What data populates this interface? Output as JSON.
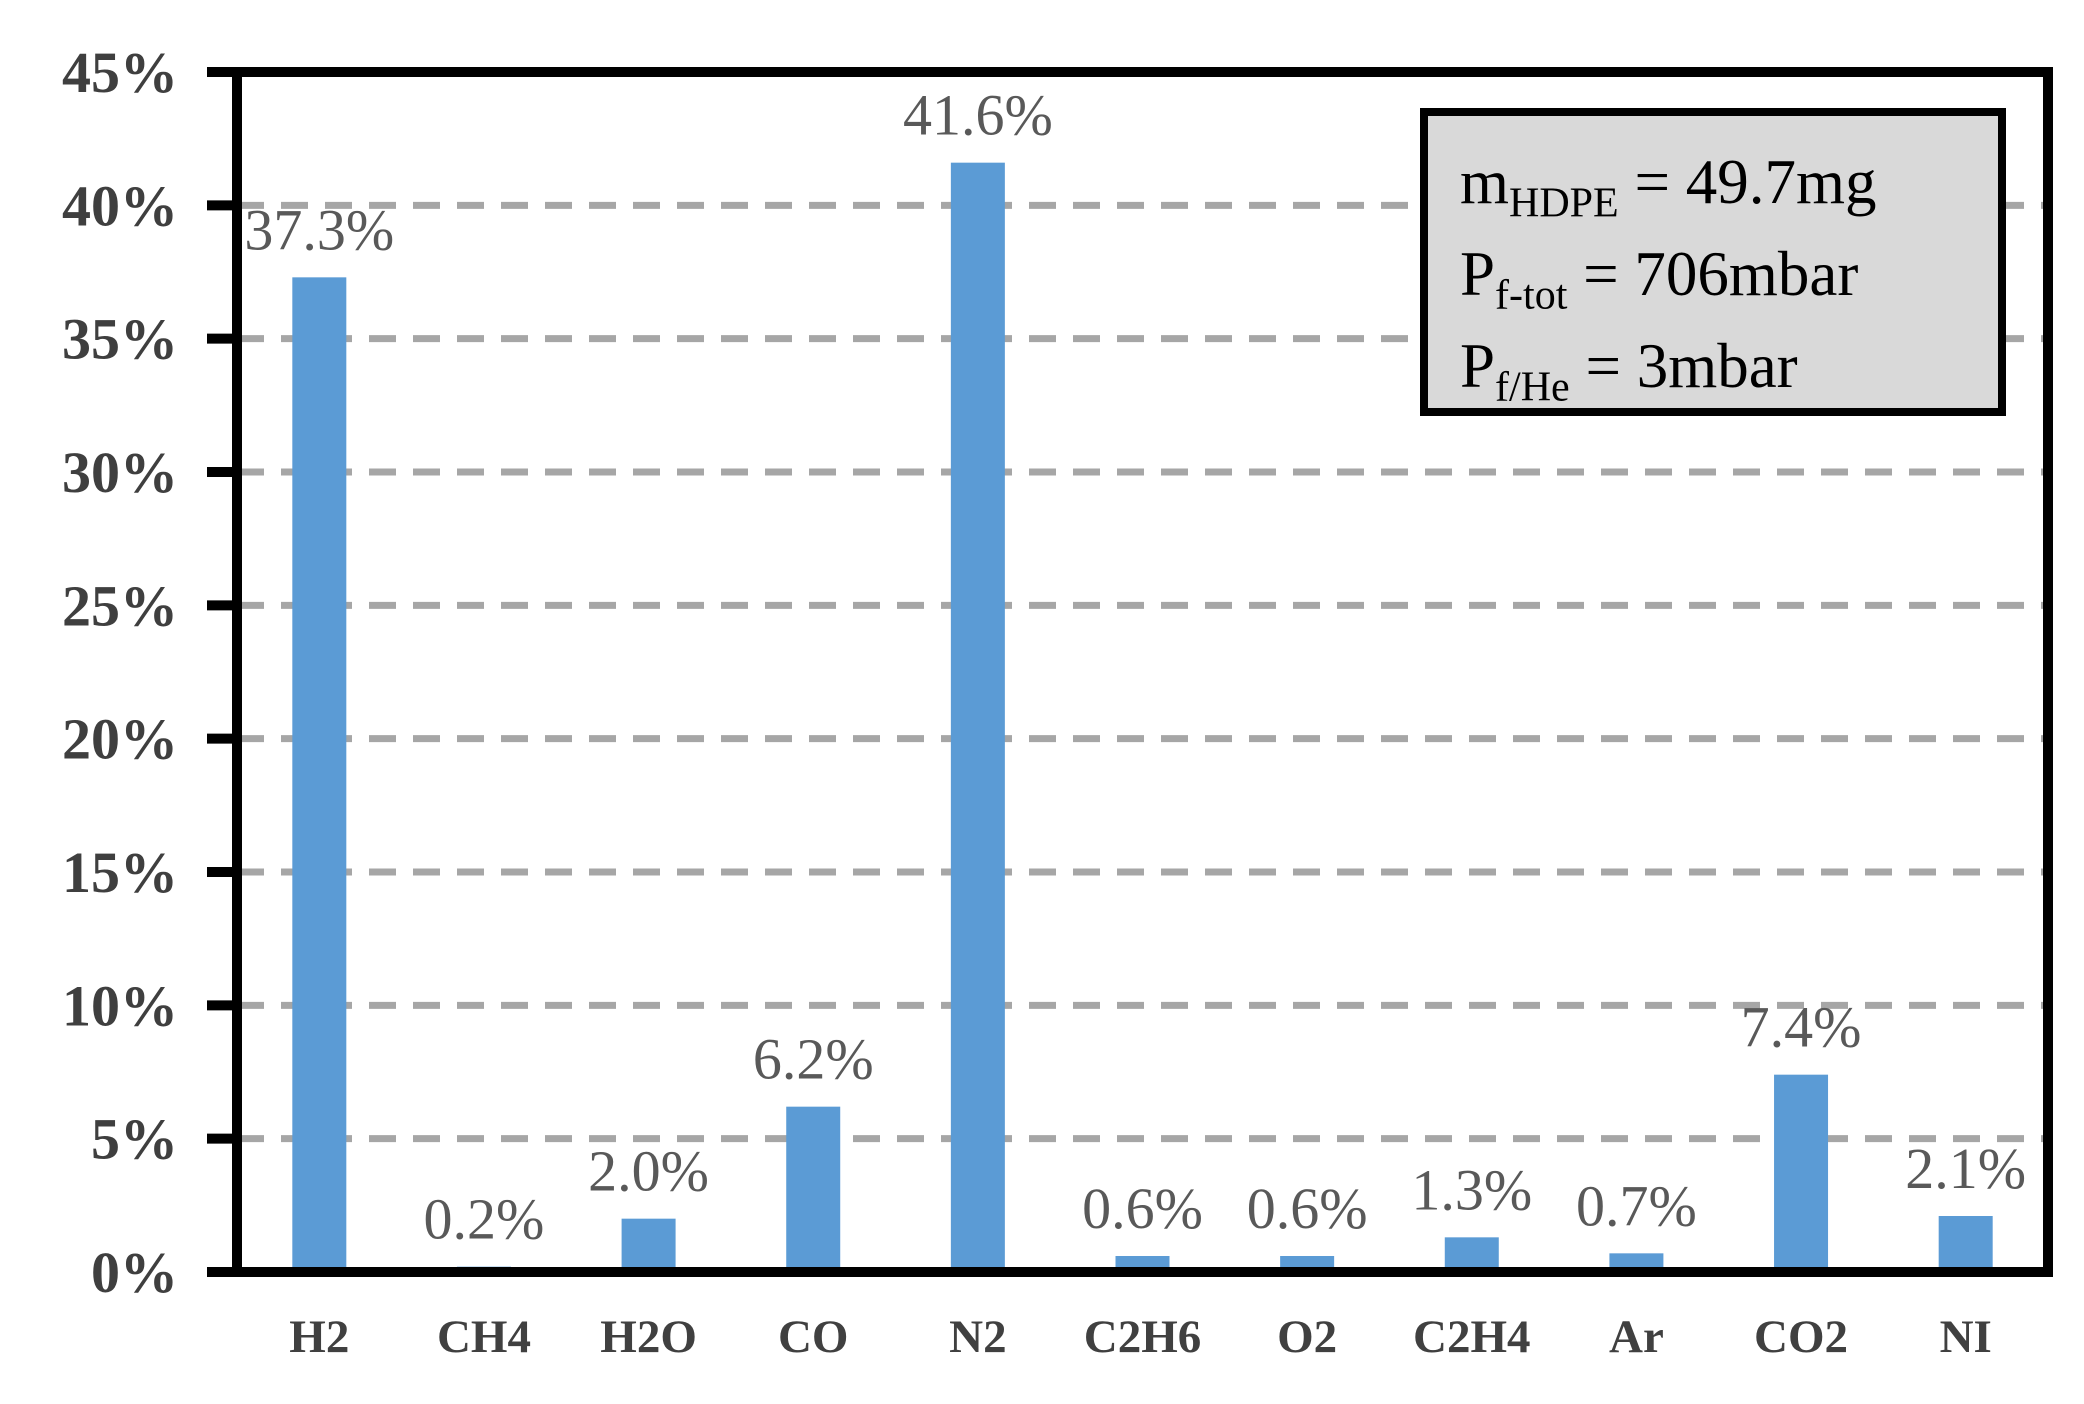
{
  "chart_data": {
    "type": "bar",
    "title": "",
    "categories": [
      "H2",
      "CH4",
      "H2O",
      "CO",
      "N2",
      "C2H6",
      "O2",
      "C2H4",
      "Ar",
      "CO2",
      "NI"
    ],
    "values": [
      37.3,
      0.2,
      2.0,
      6.2,
      41.6,
      0.6,
      0.6,
      1.3,
      0.7,
      7.4,
      2.1
    ],
    "data_labels": [
      "37.3%",
      "0.2%",
      "2.0%",
      "6.2%",
      "41.6%",
      "0.6%",
      "0.6%",
      "1.3%",
      "0.7%",
      "7.4%",
      "2.1%"
    ],
    "xlabel": "",
    "ylabel": "",
    "ylim": [
      0,
      45
    ],
    "ytick_step": 5,
    "ytick_labels": [
      "0%",
      "5%",
      "10%",
      "15%",
      "20%",
      "25%",
      "30%",
      "35%",
      "40%",
      "45%"
    ],
    "grid": "horizontal dashed, at every 5%",
    "legend_position": "inside top-right",
    "colors": {
      "bar": "#5B9BD5",
      "gridline": "#A6A6A6",
      "axis": "#000000",
      "data_label": "#595959",
      "ytick_label": "#3F3F3F",
      "xtick_label": "#404040",
      "annotation_fill": "#D9D9D9",
      "annotation_border": "#000000"
    },
    "annotation_box": {
      "lines": [
        {
          "main": "m",
          "sub": "HDPE",
          "rest": " = 49.7mg"
        },
        {
          "main": "P",
          "sub": "f-tot",
          "rest": " = 706mbar"
        },
        {
          "main": "P",
          "sub": "f/He",
          "rest": " = 3mbar"
        }
      ]
    }
  }
}
